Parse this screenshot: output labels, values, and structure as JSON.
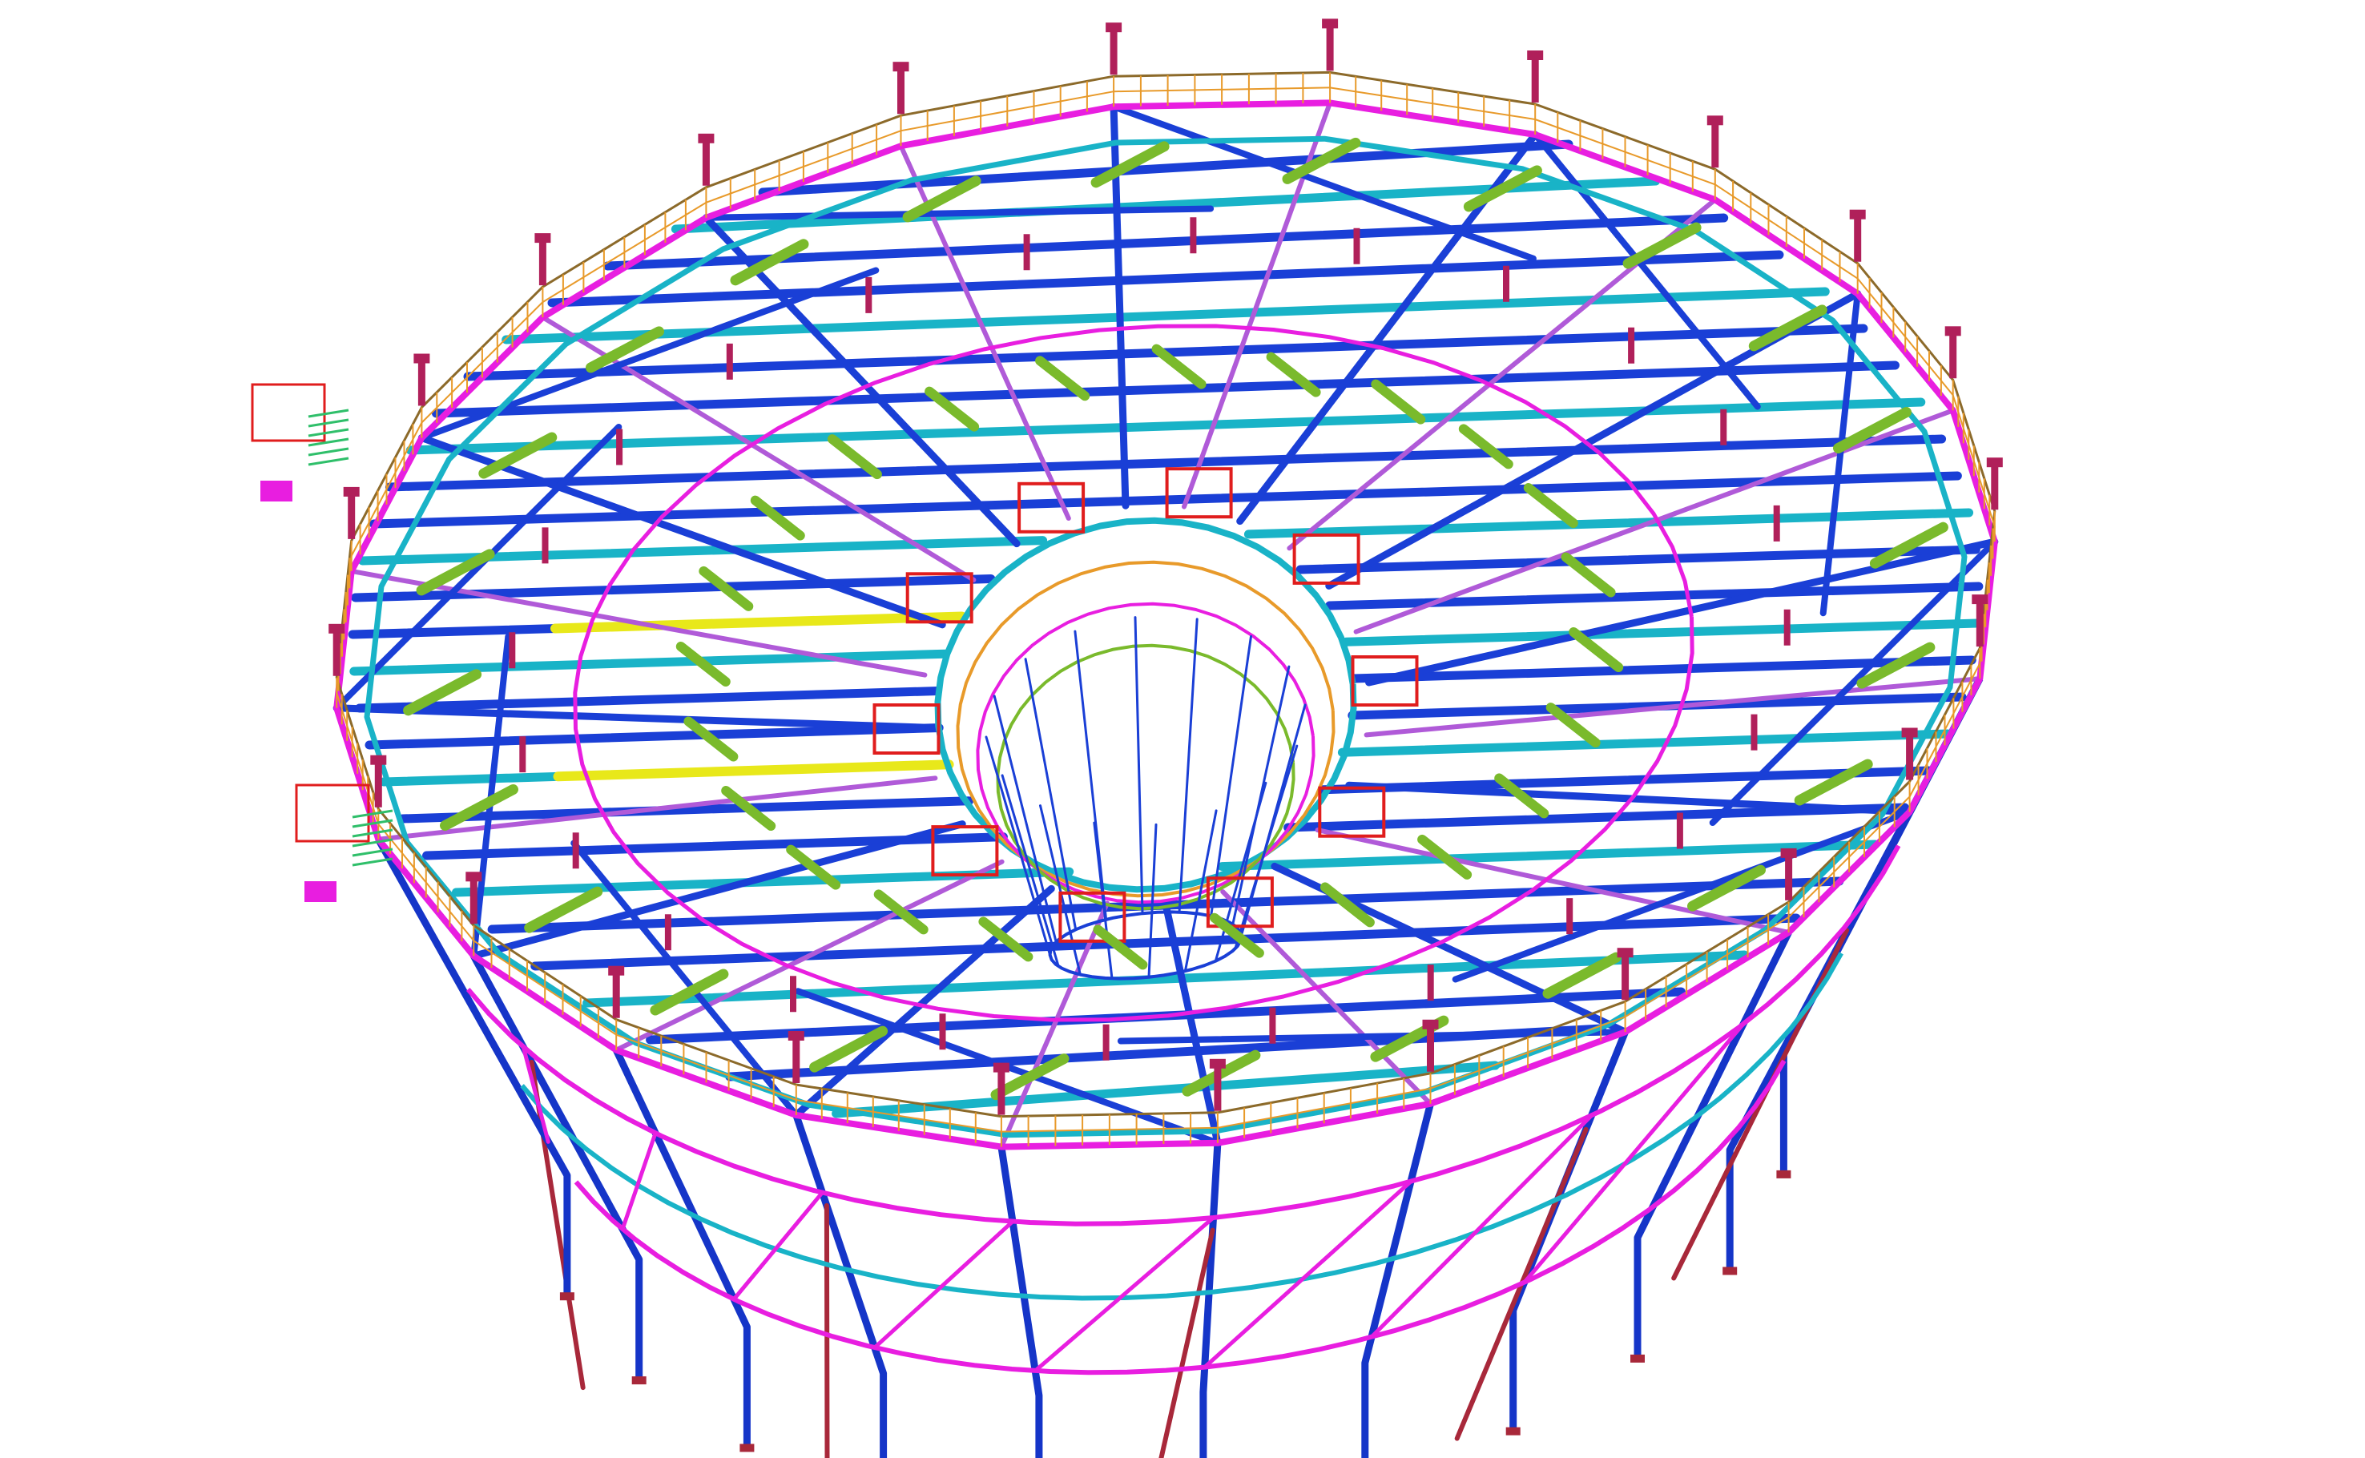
{
  "scene": {
    "background": "#ffffff",
    "subject": "structural-steel-model-3d-view",
    "rim_segments": 24,
    "radial_members": 24,
    "inner_ring": true,
    "stairs": 2
  },
  "colors": {
    "main_beam": "#1a3fd6",
    "secondary_beam": "#19b3c7",
    "ring_beam": "#e81ee0",
    "brace": "#b05ad8",
    "handrail": "#e89a2a",
    "handrail_top": "#8c6a2a",
    "bracket": "#7aba2c",
    "post": "#b0205a",
    "frame": "#e01d1d",
    "highlight_beam": "#e8e81a",
    "column": "#1535c8",
    "strut": "#a8283a",
    "green_member": "#2fbf6a"
  }
}
